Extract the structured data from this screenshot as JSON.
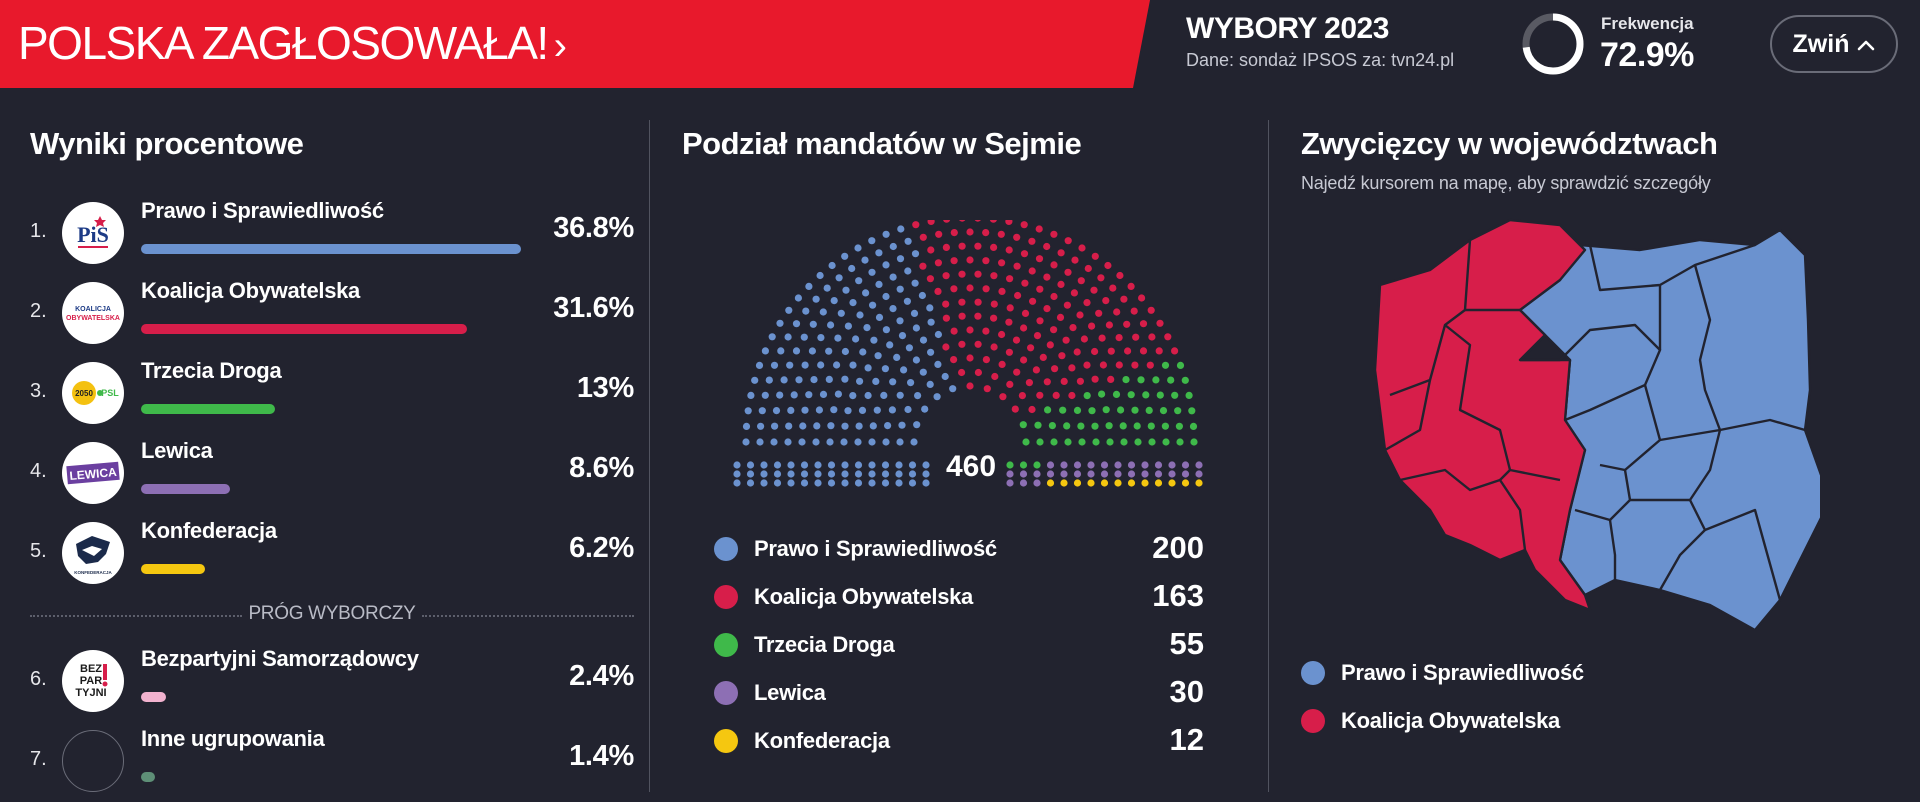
{
  "header": {
    "banner_title": "POLSKA ZAGŁOSOWAŁA!",
    "election_title": "WYBORY 2023",
    "source": "Dane: sondaż IPSOS za: tvn24.pl",
    "turnout_label": "Frekwencja",
    "turnout_value": "72.9%",
    "turnout_fraction": 0.729,
    "collapse_label": "Zwiń",
    "colors": {
      "banner": "#e8192c",
      "background": "#22232f"
    }
  },
  "results": {
    "title": "Wyniki procentowe",
    "threshold_label": "PRÓG WYBORCZY",
    "parties": [
      {
        "rank": "1.",
        "name": "Prawo i Sprawiedliwość",
        "pct": "36.8%",
        "value": 36.8,
        "color": "#6b92cf",
        "logo": "pis-logo"
      },
      {
        "rank": "2.",
        "name": "Koalicja Obywatelska",
        "pct": "31.6%",
        "value": 31.6,
        "color": "#d71e4a",
        "logo": "ko-logo"
      },
      {
        "rank": "3.",
        "name": "Trzecia Droga",
        "pct": "13%",
        "value": 13,
        "color": "#3fb94a",
        "logo": "td-logo"
      },
      {
        "rank": "4.",
        "name": "Lewica",
        "pct": "8.6%",
        "value": 8.6,
        "color": "#8d6fb4",
        "logo": "lewica-logo"
      },
      {
        "rank": "5.",
        "name": "Konfederacja",
        "pct": "6.2%",
        "value": 6.2,
        "color": "#f5c710",
        "logo": "konfederacja-logo"
      },
      {
        "rank": "6.",
        "name": "Bezpartyjni Samorządowcy",
        "pct": "2.4%",
        "value": 2.4,
        "color": "#f2b2cf",
        "logo": "bezpartyjni-logo"
      },
      {
        "rank": "7.",
        "name": "Inne ugrupowania",
        "pct": "1.4%",
        "value": 1.4,
        "color": "#5e8f77",
        "logo": ""
      }
    ],
    "logo_text": {
      "pis": "PiS",
      "ko": [
        "KOALICJA",
        "OBYWATELSKA"
      ],
      "td": "2050",
      "td_psl": "PSL",
      "lewica": "LEWICA",
      "konfederacja": "KONFEDERACJA",
      "bezpartyjni": [
        "BEZ",
        "PAR",
        "TYJNI"
      ]
    }
  },
  "seats": {
    "title": "Podział mandatów w Sejmie",
    "total": "460",
    "parties": [
      {
        "name": "Prawo i Sprawiedliwość",
        "seats": 200,
        "color": "#6b92cf"
      },
      {
        "name": "Koalicja Obywatelska",
        "seats": 163,
        "color": "#d71e4a"
      },
      {
        "name": "Trzecia Droga",
        "seats": 55,
        "color": "#3fb94a"
      },
      {
        "name": "Lewica",
        "seats": 30,
        "color": "#8d6fb4"
      },
      {
        "name": "Konfederacja",
        "seats": 12,
        "color": "#f5c710"
      }
    ]
  },
  "map": {
    "title": "Zwycięzcy w województwach",
    "subtitle": "Najedź kursorem na mapę, aby sprawdzić szczegóły",
    "legend": [
      {
        "name": "Prawo i Sprawiedliwość",
        "color": "#6b92cf"
      },
      {
        "name": "Koalicja Obywatelska",
        "color": "#d71e4a"
      }
    ],
    "voivodeships": [
      {
        "id": "zachodniopomorskie",
        "winner": "Koalicja Obywatelska"
      },
      {
        "id": "pomorskie",
        "winner": "Koalicja Obywatelska"
      },
      {
        "id": "lubuskie",
        "winner": "Koalicja Obywatelska"
      },
      {
        "id": "wielkopolskie",
        "winner": "Koalicja Obywatelska"
      },
      {
        "id": "dolnoslaskie",
        "winner": "Koalicja Obywatelska"
      },
      {
        "id": "opolskie",
        "winner": "Koalicja Obywatelska"
      },
      {
        "id": "slaskie",
        "winner": "Koalicja Obywatelska"
      },
      {
        "id": "kujawsko-pomorskie",
        "winner": "Prawo i Sprawiedliwość"
      },
      {
        "id": "warminsko-mazurskie",
        "winner": "Prawo i Sprawiedliwość"
      },
      {
        "id": "podlaskie",
        "winner": "Prawo i Sprawiedliwość"
      },
      {
        "id": "mazowieckie",
        "winner": "Prawo i Sprawiedliwość"
      },
      {
        "id": "lodzkie",
        "winner": "Prawo i Sprawiedliwość"
      },
      {
        "id": "lubelskie",
        "winner": "Prawo i Sprawiedliwość"
      },
      {
        "id": "swietokrzyskie",
        "winner": "Prawo i Sprawiedliwość"
      },
      {
        "id": "malopolskie",
        "winner": "Prawo i Sprawiedliwość"
      },
      {
        "id": "podkarpackie",
        "winner": "Prawo i Sprawiedliwość"
      }
    ]
  }
}
